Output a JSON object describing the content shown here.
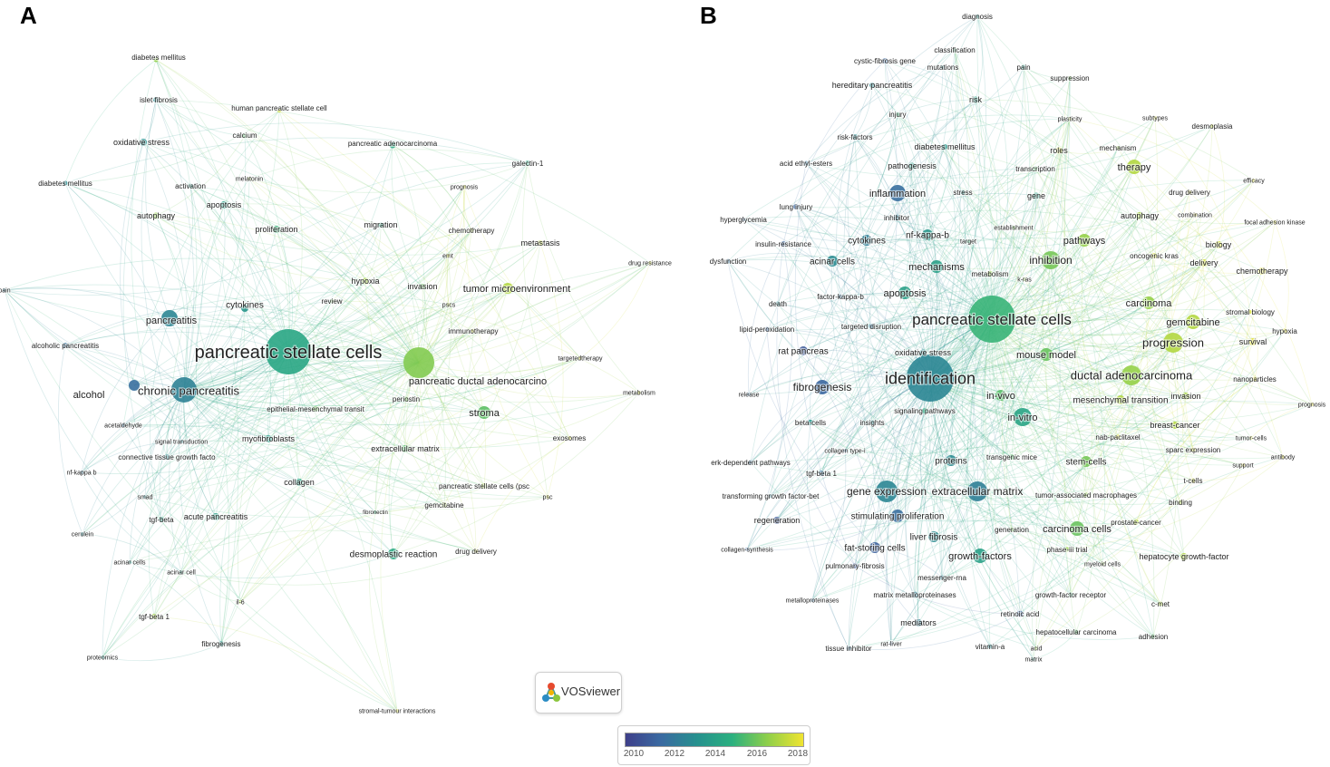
{
  "panels": {
    "a": "A",
    "b": "B"
  },
  "logo_text": "VOSviewer",
  "scale": {
    "ticks": [
      "2010",
      "2012",
      "2014",
      "2016",
      "2018"
    ],
    "colors": [
      "#3e3f8a",
      "#3a6aa1",
      "#26908e",
      "#2bb07f",
      "#8fcf4a",
      "#f0e430"
    ]
  },
  "network_a": {
    "nodes": [
      {
        "label": "pancreatic stellate cells",
        "year": 2014.3,
        "weight": 10
      },
      {
        "label": "chronic pancreatitis",
        "year": 2012.6,
        "weight": 6
      },
      {
        "label": "pancreatic ductal adenocarcino",
        "year": 2016.2,
        "weight": 7
      },
      {
        "label": "stroma",
        "year": 2015.6,
        "weight": 3
      },
      {
        "label": "tumor microenvironment",
        "year": 2017.0,
        "weight": 2.5
      },
      {
        "label": "pancreatitis",
        "year": 2012.8,
        "weight": 3
      },
      {
        "label": "alcohol",
        "year": 2011.8,
        "weight": 2
      },
      {
        "label": "cytokines",
        "year": 2013.5,
        "weight": 2
      },
      {
        "label": "diabetes mellitus",
        "year": 2016.5,
        "weight": 1
      },
      {
        "label": "islet fibrosis",
        "year": 2013.0,
        "weight": 1
      },
      {
        "label": "human pancreatic stellate cell",
        "year": 2017.5,
        "weight": 1
      },
      {
        "label": "oxidative stress",
        "year": 2013.2,
        "weight": 1.2
      },
      {
        "label": "calcium",
        "year": 2015.5,
        "weight": 1
      },
      {
        "label": "pancreatic adenocarcinoma",
        "year": 2014.5,
        "weight": 1.3
      },
      {
        "label": "galectin-1",
        "year": 2014.5,
        "weight": 1.2
      },
      {
        "label": "melatonin",
        "year": 2016.8,
        "weight": 0.8
      },
      {
        "label": "prognosis",
        "year": 2017.5,
        "weight": 0.8
      },
      {
        "label": "diabetes mellitus",
        "year": 2013.0,
        "weight": 1
      },
      {
        "label": "activation",
        "year": 2013.8,
        "weight": 1
      },
      {
        "label": "apoptosis",
        "year": 2014.0,
        "weight": 1.2
      },
      {
        "label": "autophagy",
        "year": 2016.5,
        "weight": 1.4
      },
      {
        "label": "migration",
        "year": 2014.5,
        "weight": 1
      },
      {
        "label": "chemotherapy",
        "year": 2017.0,
        "weight": 1
      },
      {
        "label": "proliferation",
        "year": 2015.0,
        "weight": 1.4
      },
      {
        "label": "metastasis",
        "year": 2017.2,
        "weight": 1.2
      },
      {
        "label": "emt",
        "year": 2017.5,
        "weight": 0.8
      },
      {
        "label": "drug resistance",
        "year": 2017.5,
        "weight": 0.8
      },
      {
        "label": "hypoxia",
        "year": 2016.8,
        "weight": 1.2
      },
      {
        "label": "invasion",
        "year": 2015.8,
        "weight": 1
      },
      {
        "label": "pscs",
        "year": 2017.3,
        "weight": 0.8
      },
      {
        "label": "review",
        "year": 2016.0,
        "weight": 0.8
      },
      {
        "label": "pain",
        "year": 2012.5,
        "weight": 0.8
      },
      {
        "label": "immunotherapy",
        "year": 2017.6,
        "weight": 0.8
      },
      {
        "label": "alcoholic pancreatitis",
        "year": 2012.0,
        "weight": 1
      },
      {
        "label": "targetedtherapy",
        "year": 2017.6,
        "weight": 0.8
      },
      {
        "label": "periostin",
        "year": 2016.0,
        "weight": 1
      },
      {
        "label": "metabolism",
        "year": 2017.5,
        "weight": 0.8
      },
      {
        "label": "acetaldehyde",
        "year": 2012.0,
        "weight": 0.8
      },
      {
        "label": "epithelial-mesenchymal transit",
        "year": 2016.0,
        "weight": 1
      },
      {
        "label": "signal transduction",
        "year": 2013.0,
        "weight": 0.8
      },
      {
        "label": "myofibroblasts",
        "year": 2013.8,
        "weight": 1.3
      },
      {
        "label": "extracellular matrix",
        "year": 2015.5,
        "weight": 1.2
      },
      {
        "label": "exosomes",
        "year": 2017.5,
        "weight": 0.8
      },
      {
        "label": "connective tissue growth facto",
        "year": 2013.0,
        "weight": 1
      },
      {
        "label": "nf-kappa b",
        "year": 2012.2,
        "weight": 0.8
      },
      {
        "label": "collagen",
        "year": 2014.2,
        "weight": 1.2
      },
      {
        "label": "pancreatic stellate cells (psc",
        "year": 2016.8,
        "weight": 1
      },
      {
        "label": "smad",
        "year": 2013.0,
        "weight": 0.8
      },
      {
        "label": "psc",
        "year": 2017.6,
        "weight": 0.8
      },
      {
        "label": "fibronectin",
        "year": 2015.0,
        "weight": 0.8
      },
      {
        "label": "tgf-beta",
        "year": 2014.0,
        "weight": 1
      },
      {
        "label": "acute pancreatitis",
        "year": 2014.0,
        "weight": 1.3
      },
      {
        "label": "gemcitabine",
        "year": 2016.8,
        "weight": 1
      },
      {
        "label": "cerulein",
        "year": 2013.0,
        "weight": 0.8
      },
      {
        "label": "desmoplastic reaction",
        "year": 2014.5,
        "weight": 1.5
      },
      {
        "label": "drug delivery",
        "year": 2017.5,
        "weight": 0.8
      },
      {
        "label": "acinar cells",
        "year": 2013.5,
        "weight": 0.8
      },
      {
        "label": "acinar cell",
        "year": 2014.0,
        "weight": 0.8
      },
      {
        "label": "il-6",
        "year": 2016.8,
        "weight": 0.8
      },
      {
        "label": "tgf-beta 1",
        "year": 2016.8,
        "weight": 1
      },
      {
        "label": "fibrogenesis",
        "year": 2013.5,
        "weight": 1
      },
      {
        "label": "proteomics",
        "year": 2013.5,
        "weight": 0.8
      },
      {
        "label": "stromal-tumour interactions",
        "year": 2017.6,
        "weight": 0.8
      }
    ]
  },
  "network_b": {
    "nodes": [
      {
        "label": "pancreatic stellate cells",
        "year": 2015.0,
        "weight": 10
      },
      {
        "label": "identification",
        "year": 2012.8,
        "weight": 9
      },
      {
        "label": "diagnosis",
        "year": 2013.5,
        "weight": 0.8
      },
      {
        "label": "classification",
        "year": 2015.0,
        "weight": 0.8
      },
      {
        "label": "cystic-fibrosis gene",
        "year": 2011.5,
        "weight": 0.8
      },
      {
        "label": "mutations",
        "year": 2013.0,
        "weight": 0.8
      },
      {
        "label": "pain",
        "year": 2014.0,
        "weight": 0.8
      },
      {
        "label": "suppression",
        "year": 2016.0,
        "weight": 0.8
      },
      {
        "label": "hereditary pancreatitis",
        "year": 2013.0,
        "weight": 1
      },
      {
        "label": "risk",
        "year": 2014.0,
        "weight": 1
      },
      {
        "label": "plasticity",
        "year": 2017.0,
        "weight": 0.8
      },
      {
        "label": "subtypes",
        "year": 2017.6,
        "weight": 0.8
      },
      {
        "label": "desmoplasia",
        "year": 2017.3,
        "weight": 0.8
      },
      {
        "label": "injury",
        "year": 2015.0,
        "weight": 0.8
      },
      {
        "label": "risk-factors",
        "year": 2013.0,
        "weight": 0.8
      },
      {
        "label": "diabetes mellitus",
        "year": 2013.5,
        "weight": 0.8
      },
      {
        "label": "roles",
        "year": 2017.5,
        "weight": 1
      },
      {
        "label": "mechanism",
        "year": 2016.5,
        "weight": 0.8
      },
      {
        "label": "acid ethyl-esters",
        "year": 2012.0,
        "weight": 0.8
      },
      {
        "label": "pathogenesis",
        "year": 2014.0,
        "weight": 1
      },
      {
        "label": "transcription",
        "year": 2015.5,
        "weight": 0.8
      },
      {
        "label": "therapy",
        "year": 2017.0,
        "weight": 2
      },
      {
        "label": "efficacy",
        "year": 2017.8,
        "weight": 0.8
      },
      {
        "label": "inflammation",
        "year": 2011.8,
        "weight": 2
      },
      {
        "label": "stress",
        "year": 2013.5,
        "weight": 0.8
      },
      {
        "label": "gene",
        "year": 2014.0,
        "weight": 1
      },
      {
        "label": "drug delivery",
        "year": 2017.8,
        "weight": 0.8
      },
      {
        "label": "lung injury",
        "year": 2011.5,
        "weight": 0.8
      },
      {
        "label": "inhibitor",
        "year": 2012.5,
        "weight": 1
      },
      {
        "label": "autophagy",
        "year": 2016.8,
        "weight": 1
      },
      {
        "label": "combination",
        "year": 2017.8,
        "weight": 0.8
      },
      {
        "label": "hyperglycemia",
        "year": 2011.5,
        "weight": 0.8
      },
      {
        "label": "establishment",
        "year": 2016.0,
        "weight": 0.8
      },
      {
        "label": "focal adhesion kinase",
        "year": 2017.8,
        "weight": 0.8
      },
      {
        "label": "nf-kappa-b",
        "year": 2013.5,
        "weight": 1.5
      },
      {
        "label": "target",
        "year": 2015.0,
        "weight": 0.8
      },
      {
        "label": "pathways",
        "year": 2016.5,
        "weight": 1.5
      },
      {
        "label": "insulin-resistance",
        "year": 2011.5,
        "weight": 0.8
      },
      {
        "label": "cytokines",
        "year": 2012.5,
        "weight": 1.5
      },
      {
        "label": "biology",
        "year": 2017.5,
        "weight": 1
      },
      {
        "label": "oncogenic kras",
        "year": 2017.5,
        "weight": 0.8
      },
      {
        "label": "dysfunction",
        "year": 2012.0,
        "weight": 0.8
      },
      {
        "label": "acinar cells",
        "year": 2013.0,
        "weight": 1.5
      },
      {
        "label": "mechanisms",
        "year": 2014.0,
        "weight": 1.8
      },
      {
        "label": "metabolism",
        "year": 2016.5,
        "weight": 1
      },
      {
        "label": "inhibition",
        "year": 2016.0,
        "weight": 2.5
      },
      {
        "label": "delivery",
        "year": 2017.5,
        "weight": 1.2
      },
      {
        "label": "chemotherapy",
        "year": 2017.8,
        "weight": 1.2
      },
      {
        "label": "k-ras",
        "year": 2016.5,
        "weight": 0.8
      },
      {
        "label": "apoptosis",
        "year": 2014.0,
        "weight": 1.5
      },
      {
        "label": "factor-kappa-b",
        "year": 2012.0,
        "weight": 0.8
      },
      {
        "label": "death",
        "year": 2013.0,
        "weight": 0.8
      },
      {
        "label": "carcinoma",
        "year": 2016.5,
        "weight": 1.8
      },
      {
        "label": "stromal biology",
        "year": 2017.6,
        "weight": 0.8
      },
      {
        "label": "targeted disruption",
        "year": 2012.0,
        "weight": 0.8
      },
      {
        "label": "gemcitabine",
        "year": 2017.0,
        "weight": 2
      },
      {
        "label": "hypoxia",
        "year": 2017.8,
        "weight": 0.8
      },
      {
        "label": "lipid-peroxidation",
        "year": 2011.5,
        "weight": 0.8
      },
      {
        "label": "progression",
        "year": 2017.0,
        "weight": 3
      },
      {
        "label": "survival",
        "year": 2017.8,
        "weight": 1.2
      },
      {
        "label": "rat pancreas",
        "year": 2011.0,
        "weight": 1.2
      },
      {
        "label": "oxidative stress",
        "year": 2013.0,
        "weight": 1
      },
      {
        "label": "mouse model",
        "year": 2015.8,
        "weight": 1.8
      },
      {
        "label": "nanoparticles",
        "year": 2017.8,
        "weight": 0.8
      },
      {
        "label": "fibrogenesis",
        "year": 2011.5,
        "weight": 2
      },
      {
        "label": "ductal adenocarcinoma",
        "year": 2016.5,
        "weight": 3
      },
      {
        "label": "prognosis",
        "year": 2017.8,
        "weight": 0.8
      },
      {
        "label": "release",
        "year": 2012.0,
        "weight": 0.8
      },
      {
        "label": "in-vivo",
        "year": 2015.5,
        "weight": 1.8
      },
      {
        "label": "mesenchymal transition",
        "year": 2017.0,
        "weight": 1.5
      },
      {
        "label": "invasion",
        "year": 2016.8,
        "weight": 1.2
      },
      {
        "label": "signaling pathways",
        "year": 2014.5,
        "weight": 1.2
      },
      {
        "label": "in-vitro",
        "year": 2014.2,
        "weight": 2.5
      },
      {
        "label": "beta-cells",
        "year": 2013.5,
        "weight": 0.8
      },
      {
        "label": "insights",
        "year": 2013.0,
        "weight": 0.8
      },
      {
        "label": "breast-cancer",
        "year": 2017.0,
        "weight": 1.2
      },
      {
        "label": "nab-paclitaxel",
        "year": 2017.8,
        "weight": 0.8
      },
      {
        "label": "tumor-cells",
        "year": 2017.5,
        "weight": 0.8
      },
      {
        "label": "collagen type-i",
        "year": 2012.0,
        "weight": 0.8
      },
      {
        "label": "sparc expression",
        "year": 2017.6,
        "weight": 0.8
      },
      {
        "label": "antibody",
        "year": 2017.8,
        "weight": 0.8
      },
      {
        "label": "erk-dependent pathways",
        "year": 2012.0,
        "weight": 0.8
      },
      {
        "label": "proteins",
        "year": 2013.0,
        "weight": 1.5
      },
      {
        "label": "transgenic mice",
        "year": 2015.5,
        "weight": 1
      },
      {
        "label": "stem-cells",
        "year": 2016.0,
        "weight": 1.5
      },
      {
        "label": "support",
        "year": 2017.8,
        "weight": 0.8
      },
      {
        "label": "tgf-beta 1",
        "year": 2012.0,
        "weight": 1
      },
      {
        "label": "t-cells",
        "year": 2017.5,
        "weight": 0.8
      },
      {
        "label": "gene expression",
        "year": 2012.8,
        "weight": 3
      },
      {
        "label": "extracellular matrix",
        "year": 2012.5,
        "weight": 2.5
      },
      {
        "label": "tumor-associated macrophages",
        "year": 2016.5,
        "weight": 0.8
      },
      {
        "label": "transforming growth factor-bet",
        "year": 2012.5,
        "weight": 0.8
      },
      {
        "label": "binding",
        "year": 2017.0,
        "weight": 0.8
      },
      {
        "label": "regeneration",
        "year": 2011.0,
        "weight": 1
      },
      {
        "label": "stimulating proliferation",
        "year": 2011.8,
        "weight": 1.5
      },
      {
        "label": "prostate-cancer",
        "year": 2017.0,
        "weight": 1
      },
      {
        "label": "carcinoma cells",
        "year": 2015.8,
        "weight": 2
      },
      {
        "label": "generation",
        "year": 2016.0,
        "weight": 0.8
      },
      {
        "label": "liver fibrosis",
        "year": 2013.0,
        "weight": 1.5
      },
      {
        "label": "collagen-synthesis",
        "year": 2011.5,
        "weight": 0.8
      },
      {
        "label": "fat-storing cells",
        "year": 2011.2,
        "weight": 1.2
      },
      {
        "label": "growth-factors",
        "year": 2014.0,
        "weight": 2
      },
      {
        "label": "phase-iii trial",
        "year": 2016.5,
        "weight": 0.8
      },
      {
        "label": "hepatocyte growth-factor",
        "year": 2017.0,
        "weight": 1
      },
      {
        "label": "pulmonary-fibrosis",
        "year": 2011.0,
        "weight": 0.8
      },
      {
        "label": "myeloid cells",
        "year": 2016.5,
        "weight": 0.8
      },
      {
        "label": "messenger-rna",
        "year": 2012.5,
        "weight": 0.8
      },
      {
        "label": "growth-factor receptor",
        "year": 2015.0,
        "weight": 0.8
      },
      {
        "label": "metalloproteinases",
        "year": 2012.0,
        "weight": 0.8
      },
      {
        "label": "matrix metalloproteinases",
        "year": 2012.5,
        "weight": 1
      },
      {
        "label": "c-met",
        "year": 2017.0,
        "weight": 0.8
      },
      {
        "label": "retinoic acid",
        "year": 2011.5,
        "weight": 1
      },
      {
        "label": "mediators",
        "year": 2012.5,
        "weight": 1.2
      },
      {
        "label": "hepatocellular carcinoma",
        "year": 2015.5,
        "weight": 0.8
      },
      {
        "label": "adhesion",
        "year": 2015.5,
        "weight": 0.8
      },
      {
        "label": "tissue inhibitor",
        "year": 2012.0,
        "weight": 0.8
      },
      {
        "label": "rat-liver",
        "year": 2011.5,
        "weight": 0.8
      },
      {
        "label": "vitamin-a",
        "year": 2013.0,
        "weight": 0.8
      },
      {
        "label": "acid",
        "year": 2016.5,
        "weight": 0.8
      },
      {
        "label": "matrix",
        "year": 2014.0,
        "weight": 0.8
      }
    ]
  }
}
